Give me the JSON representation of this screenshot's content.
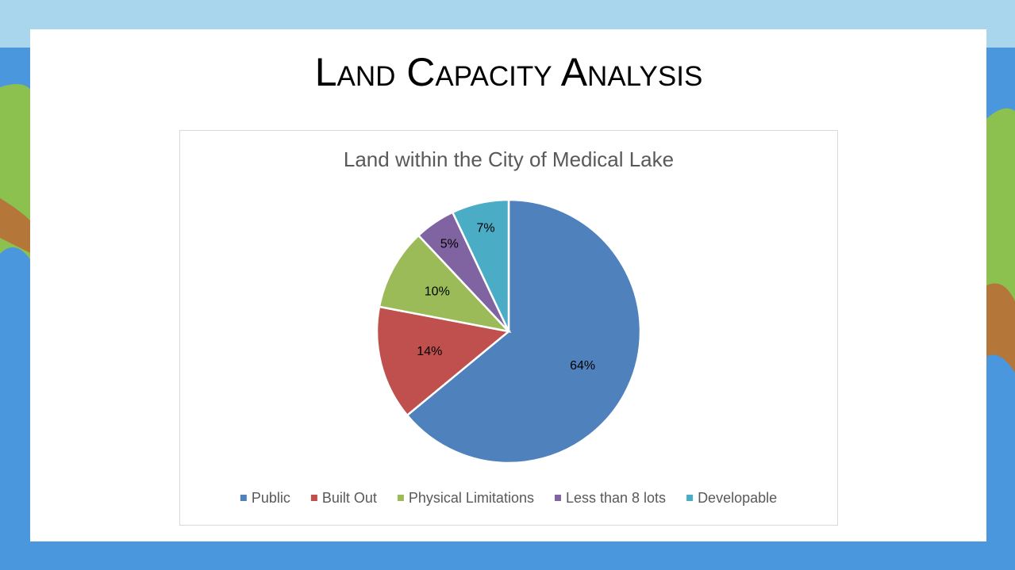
{
  "slide_title": "Land Capacity Analysis",
  "chart_data": {
    "type": "pie",
    "title": "Land within the City of Medical Lake",
    "categories": [
      "Public",
      "Built Out",
      "Physical Limitations",
      "Less than 8 lots",
      "Developable"
    ],
    "values": [
      64,
      14,
      10,
      5,
      7
    ],
    "value_labels": [
      "64%",
      "14%",
      "10%",
      "5%",
      "7%"
    ],
    "colors": [
      "#4f81bd",
      "#c0504d",
      "#9bbb59",
      "#8064a2",
      "#4bacc6"
    ],
    "legend": "bottom"
  }
}
